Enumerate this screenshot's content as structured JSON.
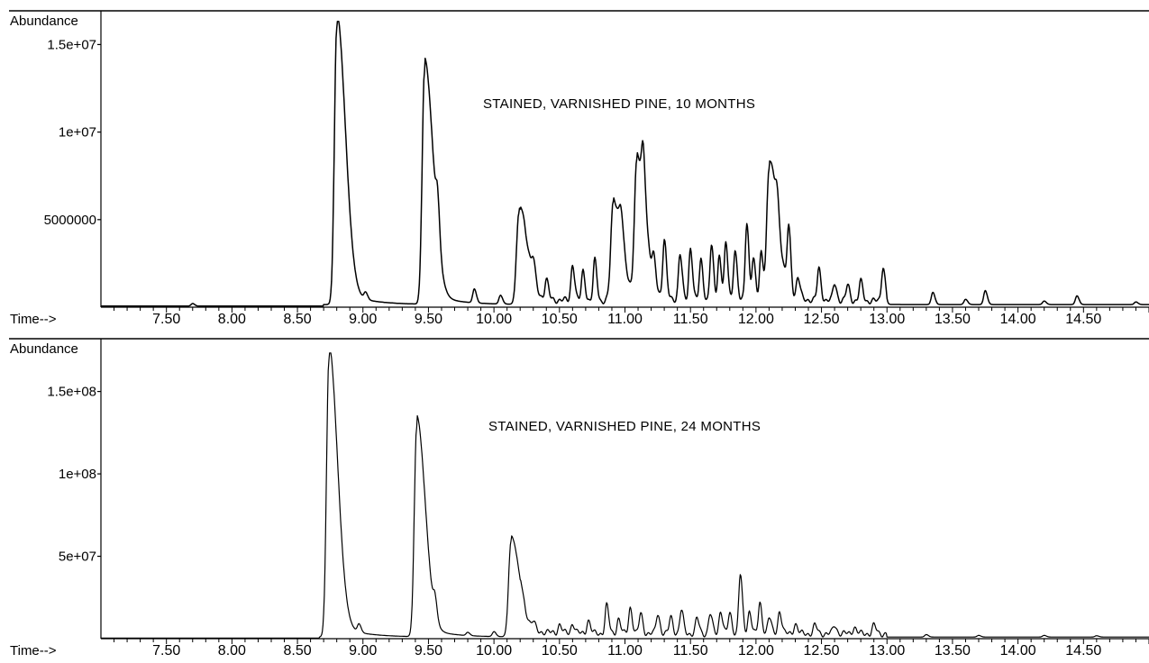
{
  "chart_data": [
    {
      "type": "line",
      "title": "STAINED, VARNISHED PINE, 10 MONTHS",
      "ylabel": "Abundance",
      "xlabel": "Time-->",
      "xlim": [
        7.0,
        15.0
      ],
      "ylim": [
        0,
        16000000
      ],
      "yticks": [
        {
          "value": 5000000,
          "label": "5000000"
        },
        {
          "value": 10000000,
          "label": "1e+07"
        },
        {
          "value": 15000000,
          "label": "1.5e+07"
        }
      ],
      "xticks": [
        "7.50",
        "8.00",
        "8.50",
        "9.00",
        "9.50",
        "10.00",
        "10.50",
        "11.00",
        "11.50",
        "12.00",
        "12.50",
        "13.00",
        "13.50",
        "14.00",
        "14.50"
      ],
      "baseline": 150000,
      "peaks": [
        {
          "t": 7.7,
          "height": 150000
        },
        {
          "t": 8.8,
          "height": 15800000
        },
        {
          "t": 9.02,
          "height": 400000
        },
        {
          "t": 9.47,
          "height": 13300000
        },
        {
          "t": 9.57,
          "height": 2200000
        },
        {
          "t": 9.85,
          "height": 800000
        },
        {
          "t": 10.05,
          "height": 500000
        },
        {
          "t": 10.19,
          "height": 5200000
        },
        {
          "t": 10.3,
          "height": 1100000
        },
        {
          "t": 10.4,
          "height": 1100000
        },
        {
          "t": 10.6,
          "height": 2100000
        },
        {
          "t": 10.68,
          "height": 1700000
        },
        {
          "t": 10.77,
          "height": 2300000
        },
        {
          "t": 10.91,
          "height": 5600000
        },
        {
          "t": 10.97,
          "height": 1500000
        },
        {
          "t": 11.09,
          "height": 7700000
        },
        {
          "t": 11.14,
          "height": 2800000
        },
        {
          "t": 11.22,
          "height": 1300000
        },
        {
          "t": 11.3,
          "height": 3300000
        },
        {
          "t": 11.42,
          "height": 2600000
        },
        {
          "t": 11.5,
          "height": 3000000
        },
        {
          "t": 11.58,
          "height": 2300000
        },
        {
          "t": 11.66,
          "height": 3100000
        },
        {
          "t": 11.72,
          "height": 2600000
        },
        {
          "t": 11.77,
          "height": 3200000
        },
        {
          "t": 11.84,
          "height": 3000000
        },
        {
          "t": 11.93,
          "height": 4500000
        },
        {
          "t": 11.98,
          "height": 2400000
        },
        {
          "t": 12.04,
          "height": 2800000
        },
        {
          "t": 12.1,
          "height": 7600000
        },
        {
          "t": 12.16,
          "height": 1500000
        },
        {
          "t": 12.25,
          "height": 3600000
        },
        {
          "t": 12.32,
          "height": 1200000
        },
        {
          "t": 12.48,
          "height": 1800000
        },
        {
          "t": 12.6,
          "height": 1000000
        },
        {
          "t": 12.7,
          "height": 900000
        },
        {
          "t": 12.8,
          "height": 1100000
        },
        {
          "t": 12.97,
          "height": 2000000
        },
        {
          "t": 13.35,
          "height": 700000
        },
        {
          "t": 13.6,
          "height": 300000
        },
        {
          "t": 13.75,
          "height": 800000
        },
        {
          "t": 14.2,
          "height": 200000
        },
        {
          "t": 14.45,
          "height": 500000
        },
        {
          "t": 14.9,
          "height": 150000
        }
      ]
    },
    {
      "type": "line",
      "title": "STAINED, VARNISHED PINE, 24 MONTHS",
      "ylabel": "Abundance",
      "xlabel": "Time-->",
      "xlim": [
        7.0,
        15.0
      ],
      "ylim": [
        0,
        170000000
      ],
      "yticks": [
        {
          "value": 50000000,
          "label": "5e+07"
        },
        {
          "value": 100000000,
          "label": "1e+08"
        },
        {
          "value": 150000000,
          "label": "1.5e+08"
        }
      ],
      "xticks": [
        "7.50",
        "8.00",
        "8.50",
        "9.00",
        "9.50",
        "10.00",
        "10.50",
        "11.00",
        "11.50",
        "12.00",
        "12.50",
        "13.00",
        "13.50",
        "14.00",
        "14.50"
      ],
      "baseline": 1000000,
      "peaks": [
        {
          "t": 8.74,
          "height": 168000000
        },
        {
          "t": 8.97,
          "height": 5000000
        },
        {
          "t": 9.41,
          "height": 127000000
        },
        {
          "t": 9.55,
          "height": 11000000
        },
        {
          "t": 9.8,
          "height": 2000000
        },
        {
          "t": 10.0,
          "height": 3000000
        },
        {
          "t": 10.13,
          "height": 58000000
        },
        {
          "t": 10.3,
          "height": 4000000
        },
        {
          "t": 10.5,
          "height": 5000000
        },
        {
          "t": 10.6,
          "height": 6000000
        },
        {
          "t": 10.72,
          "height": 8000000
        },
        {
          "t": 10.86,
          "height": 17000000
        },
        {
          "t": 10.95,
          "height": 9000000
        },
        {
          "t": 11.04,
          "height": 16000000
        },
        {
          "t": 11.12,
          "height": 12000000
        },
        {
          "t": 11.25,
          "height": 12000000
        },
        {
          "t": 11.35,
          "height": 10000000
        },
        {
          "t": 11.43,
          "height": 14000000
        },
        {
          "t": 11.55,
          "height": 9000000
        },
        {
          "t": 11.65,
          "height": 12000000
        },
        {
          "t": 11.73,
          "height": 14000000
        },
        {
          "t": 11.8,
          "height": 12000000
        },
        {
          "t": 11.88,
          "height": 36000000
        },
        {
          "t": 11.95,
          "height": 14000000
        },
        {
          "t": 12.03,
          "height": 18000000
        },
        {
          "t": 12.1,
          "height": 10000000
        },
        {
          "t": 12.18,
          "height": 14000000
        },
        {
          "t": 12.3,
          "height": 6000000
        },
        {
          "t": 12.45,
          "height": 5000000
        },
        {
          "t": 12.6,
          "height": 5000000
        },
        {
          "t": 12.75,
          "height": 4000000
        },
        {
          "t": 12.9,
          "height": 5000000
        },
        {
          "t": 13.3,
          "height": 1500000
        },
        {
          "t": 13.7,
          "height": 1000000
        },
        {
          "t": 14.2,
          "height": 1000000
        },
        {
          "t": 14.6,
          "height": 800000
        }
      ]
    }
  ]
}
